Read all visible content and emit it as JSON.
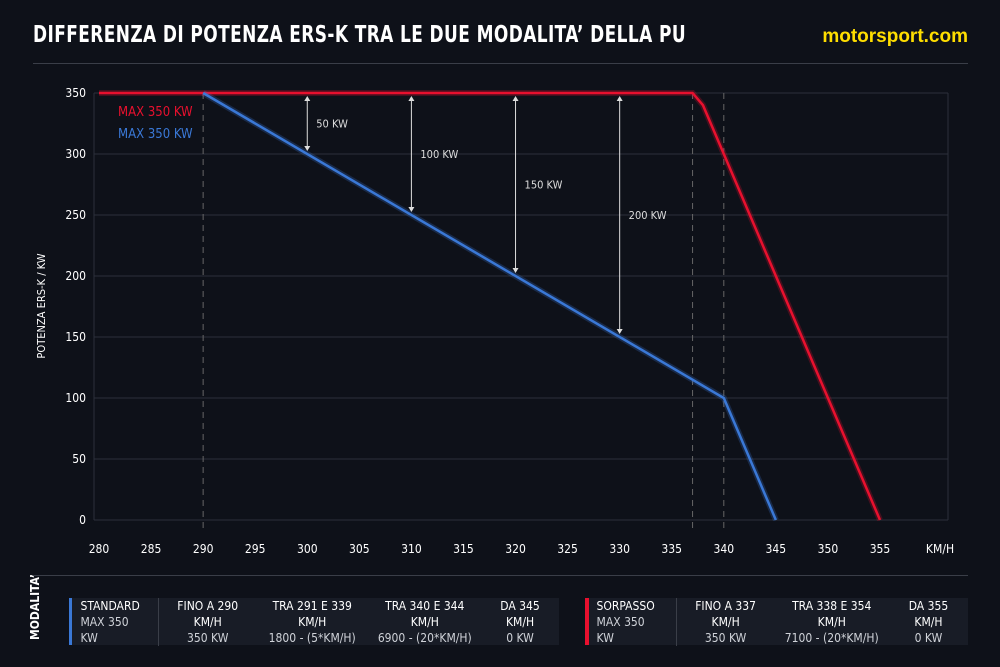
{
  "title": "DIFFERENZA DI POTENZA ERS-K TRA LE DUE MODALITA’ DELLA PU",
  "brand": "motorsport.com",
  "chart_data": {
    "type": "line",
    "ylabel": "POTENZA ERS-K / KW",
    "xlabel": "KM/H",
    "xlim": [
      280,
      355
    ],
    "ylim": [
      0,
      350
    ],
    "xticks": [
      280,
      285,
      290,
      295,
      300,
      305,
      310,
      315,
      320,
      325,
      330,
      335,
      340,
      345,
      350,
      355
    ],
    "yticks": [
      0,
      50,
      100,
      150,
      200,
      250,
      300,
      350
    ],
    "grid": "horizontal",
    "colors": {
      "red": "#e8102e",
      "blue": "#3a78d6"
    },
    "legend": [
      {
        "label": "MAX 350 KW",
        "color": "#e8102e"
      },
      {
        "label": "MAX 350 KW",
        "color": "#3a78d6"
      }
    ],
    "series": [
      {
        "color": "#e8102e",
        "x": [
          280,
          337,
          338,
          355
        ],
        "y": [
          350,
          350,
          340,
          0
        ]
      },
      {
        "color": "#3a78d6",
        "x": [
          290,
          339,
          340,
          345
        ],
        "y": [
          350,
          105,
          100,
          0
        ]
      }
    ],
    "reference_lines_x": [
      290,
      337,
      340
    ],
    "annotations": [
      {
        "x": 300,
        "from": 300,
        "to": 350,
        "label": "50 KW"
      },
      {
        "x": 310,
        "from": 250,
        "to": 350,
        "label": "100 KW"
      },
      {
        "x": 320,
        "from": 200,
        "to": 350,
        "label": "150 KW"
      },
      {
        "x": 330,
        "from": 150,
        "to": 350,
        "label": "200 KW"
      }
    ]
  },
  "modes_label": "MODALITA’",
  "standard": {
    "color": "#3a78d6",
    "name": "STANDARD",
    "max": "MAX 350 KW",
    "cols": [
      {
        "h": "FINO A 290 KM/H",
        "v": "350 KW"
      },
      {
        "h": "TRA 291 E 339 KM/H",
        "v": "1800 - (5*KM/H)"
      },
      {
        "h": "TRA 340 E 344 KM/H",
        "v": "6900 - (20*KM/H)"
      },
      {
        "h": "DA 345 KM/H",
        "v": "0 KW"
      }
    ]
  },
  "sorpasso": {
    "color": "#e8102e",
    "name": "SORPASSO",
    "max": "MAX 350 KW",
    "cols": [
      {
        "h": "FINO A 337 KM/H",
        "v": "350 KW"
      },
      {
        "h": "TRA 338 E 354 KM/H",
        "v": "7100 - (20*KM/H)"
      },
      {
        "h": "DA 355 KM/H",
        "v": "0 KW"
      }
    ]
  }
}
